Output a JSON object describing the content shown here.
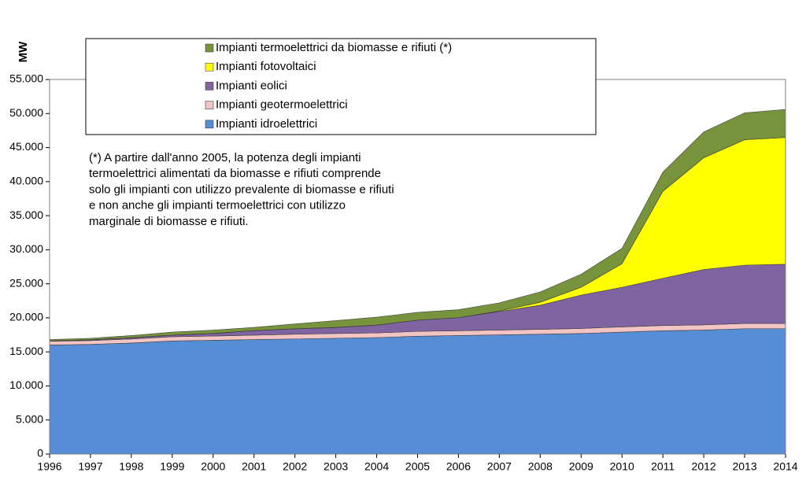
{
  "chart_data": {
    "type": "stacked-area",
    "y_label": "MW",
    "x": [
      1996,
      1997,
      1998,
      1999,
      2000,
      2001,
      2002,
      2003,
      2004,
      2005,
      2006,
      2007,
      2008,
      2009,
      2010,
      2011,
      2012,
      2013,
      2014
    ],
    "xlim": [
      1996,
      2014
    ],
    "series": [
      {
        "name": "Impianti idroelettrici",
        "color": "#558ed5",
        "values": [
          16000,
          16100,
          16300,
          16600,
          16700,
          16800,
          16900,
          17000,
          17100,
          17300,
          17400,
          17500,
          17600,
          17700,
          17900,
          18100,
          18200,
          18400,
          18400
        ]
      },
      {
        "name": "Impianti geotermoelettrici",
        "color": "#f2c4c4",
        "values": [
          560,
          560,
          590,
          620,
          630,
          660,
          700,
          700,
          680,
          710,
          710,
          710,
          710,
          740,
          770,
          770,
          770,
          770,
          770
        ]
      },
      {
        "name": "Impianti eolici",
        "color": "#8064a2",
        "values": [
          20,
          100,
          180,
          230,
          360,
          660,
          780,
          870,
          1130,
          1640,
          1910,
          2710,
          3540,
          4900,
          5800,
          6940,
          8120,
          8560,
          8700
        ]
      },
      {
        "name": "Impianti fotovoltaici",
        "color": "#ffff00",
        "values": [
          20,
          20,
          20,
          20,
          20,
          20,
          20,
          30,
          30,
          10,
          10,
          90,
          430,
          1140,
          3470,
          12770,
          16420,
          18420,
          18610
        ]
      },
      {
        "name": "Impianti termoelettrici da biomasse e rifiuti (*)",
        "color": "#77933c",
        "values": [
          200,
          220,
          310,
          430,
          490,
          460,
          700,
          1000,
          1160,
          1140,
          1170,
          1190,
          1520,
          1920,
          2260,
          2820,
          3790,
          3950,
          4120
        ]
      }
    ],
    "ylim": [
      0,
      55000
    ],
    "yticks": [
      0,
      {
        "value": 5000,
        "label": "5.000"
      },
      {
        "value": 10000,
        "label": "10.000"
      },
      {
        "value": 15000,
        "label": "15.000"
      },
      {
        "value": 20000,
        "label": "20.000"
      },
      {
        "value": 25000,
        "label": "25.000"
      },
      {
        "value": 30000,
        "label": "30.000"
      },
      {
        "value": 35000,
        "label": "35.000"
      },
      {
        "value": 40000,
        "label": "40.000"
      },
      {
        "value": 45000,
        "label": "45.000"
      },
      {
        "value": 50000,
        "label": "50.000"
      },
      {
        "value": 55000,
        "label": "55.000"
      }
    ],
    "note": [
      "(*) A partire dall'anno 2005, la potenza degli impianti",
      "termoelettrici alimentati da biomasse e rifiuti comprende",
      "solo gli impianti con utilizzo prevalente di biomasse e rifiuti",
      "e non anche gli impianti termoelettrici con utilizzo",
      "marginale di biomasse e rifiuti."
    ]
  }
}
